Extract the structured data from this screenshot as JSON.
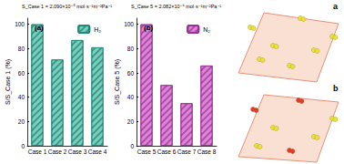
{
  "chart_data": [
    {
      "type": "bar",
      "title": "(a)",
      "annotations": [
        "S_Case 1 = 2.090×10⁻⁵ mol·s⁻¹m⁻²Pa⁻¹"
      ],
      "ylabel": "S/S_Case 1 (%)",
      "categories": [
        "Case 1",
        "Case 2",
        "Case 3",
        "Case 4"
      ],
      "series": [
        {
          "name": "H₂",
          "color": "#6fd3bf",
          "values": [
            100,
            71,
            87,
            81
          ]
        }
      ],
      "ylim": [
        0,
        105
      ],
      "yticks": [
        0,
        20,
        40,
        60,
        80,
        100
      ],
      "legend": "upper right"
    },
    {
      "type": "bar",
      "title": "(b)",
      "annotations": [
        "S_Case 5 = 2.082×10⁻⁶ mol·s⁻¹m⁻²Pa⁻¹"
      ],
      "ylabel": "S/S_Case 5 (%)",
      "categories": [
        "Case 5",
        "Case 6",
        "Case 7",
        "Case 8"
      ],
      "series": [
        {
          "name": "N₂",
          "color": "#e77fe0",
          "values": [
            100,
            50,
            35,
            66
          ]
        }
      ],
      "ylim": [
        0,
        105
      ],
      "yticks": [
        0,
        20,
        40,
        60,
        80,
        100
      ],
      "legend": "upper right"
    }
  ],
  "figure": {
    "image_labels": [
      "a",
      "b"
    ]
  }
}
